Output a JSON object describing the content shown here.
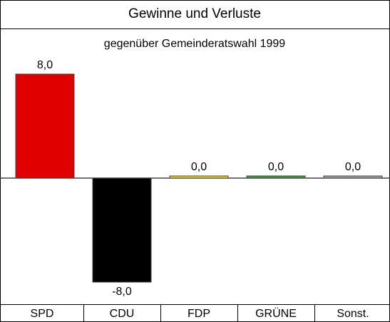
{
  "chart_data": {
    "type": "bar",
    "title": "Gewinne und Verluste",
    "subtitle": "gegenüber Gemeinderatswahl 1999",
    "categories": [
      "SPD",
      "CDU",
      "FDP",
      "GRÜNE",
      "Sonst."
    ],
    "values": [
      8.0,
      -8.0,
      0.0,
      0.0,
      0.0
    ],
    "value_labels": [
      "8,0",
      "-8,0",
      "0,0",
      "0,0",
      "0,0"
    ],
    "colors": [
      "#e00000",
      "#000000",
      "#e8e000",
      "#3a9a3a",
      "#a0a0a0"
    ],
    "ylim": [
      -8,
      8
    ]
  }
}
